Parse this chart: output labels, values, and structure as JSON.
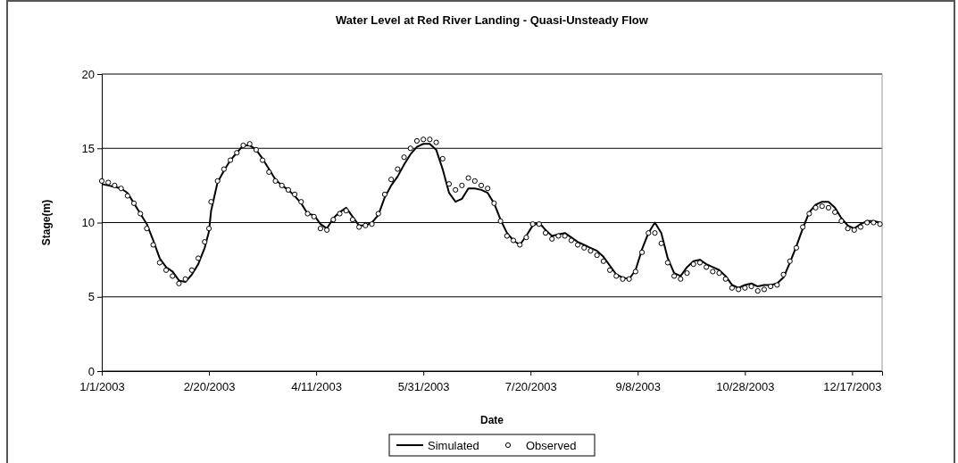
{
  "chart_data": {
    "type": "line",
    "title": "Water Level at Red River Landing - Quasi-Unsteady Flow",
    "xlabel": "Date",
    "ylabel": "Stage(m)",
    "x": [
      "2003-01-01",
      "2003-01-04",
      "2003-01-07",
      "2003-01-10",
      "2003-01-13",
      "2003-01-16",
      "2003-01-19",
      "2003-01-22",
      "2003-01-25",
      "2003-01-28",
      "2003-01-31",
      "2003-02-03",
      "2003-02-06",
      "2003-02-09",
      "2003-02-12",
      "2003-02-15",
      "2003-02-18",
      "2003-02-20",
      "2003-02-21",
      "2003-02-24",
      "2003-02-27",
      "2003-03-02",
      "2003-03-05",
      "2003-03-08",
      "2003-03-11",
      "2003-03-14",
      "2003-03-17",
      "2003-03-20",
      "2003-03-23",
      "2003-03-26",
      "2003-03-29",
      "2003-04-01",
      "2003-04-04",
      "2003-04-07",
      "2003-04-10",
      "2003-04-13",
      "2003-04-16",
      "2003-04-19",
      "2003-04-22",
      "2003-04-25",
      "2003-04-28",
      "2003-05-01",
      "2003-05-04",
      "2003-05-07",
      "2003-05-10",
      "2003-05-13",
      "2003-05-16",
      "2003-05-19",
      "2003-05-22",
      "2003-05-25",
      "2003-05-28",
      "2003-05-31",
      "2003-06-03",
      "2003-06-06",
      "2003-06-09",
      "2003-06-12",
      "2003-06-15",
      "2003-06-18",
      "2003-06-21",
      "2003-06-24",
      "2003-06-27",
      "2003-06-30",
      "2003-07-03",
      "2003-07-06",
      "2003-07-09",
      "2003-07-12",
      "2003-07-15",
      "2003-07-18",
      "2003-07-21",
      "2003-07-24",
      "2003-07-27",
      "2003-07-30",
      "2003-08-02",
      "2003-08-05",
      "2003-08-08",
      "2003-08-11",
      "2003-08-14",
      "2003-08-17",
      "2003-08-20",
      "2003-08-23",
      "2003-08-26",
      "2003-08-29",
      "2003-09-01",
      "2003-09-04",
      "2003-09-07",
      "2003-09-10",
      "2003-09-13",
      "2003-09-16",
      "2003-09-19",
      "2003-09-22",
      "2003-09-25",
      "2003-09-28",
      "2003-10-01",
      "2003-10-04",
      "2003-10-07",
      "2003-10-10",
      "2003-10-13",
      "2003-10-16",
      "2003-10-19",
      "2003-10-22",
      "2003-10-25",
      "2003-10-28",
      "2003-10-31",
      "2003-11-03",
      "2003-11-06",
      "2003-11-09",
      "2003-11-12",
      "2003-11-15",
      "2003-11-18",
      "2003-11-21",
      "2003-11-24",
      "2003-11-27",
      "2003-11-30",
      "2003-12-03",
      "2003-12-06",
      "2003-12-09",
      "2003-12-12",
      "2003-12-15",
      "2003-12-18",
      "2003-12-21",
      "2003-12-24",
      "2003-12-27",
      "2003-12-30"
    ],
    "series": [
      {
        "name": "Simulated",
        "color": "#000000",
        "values": [
          12.6,
          12.5,
          12.4,
          12.3,
          12.0,
          11.3,
          10.6,
          9.9,
          8.8,
          7.6,
          7.0,
          6.7,
          6.1,
          6.0,
          6.5,
          7.2,
          8.3,
          9.4,
          10.8,
          12.7,
          13.5,
          14.2,
          14.7,
          15.2,
          15.2,
          14.9,
          14.3,
          13.6,
          12.9,
          12.5,
          12.2,
          11.8,
          11.3,
          10.6,
          10.5,
          9.9,
          9.6,
          10.3,
          10.7,
          11.0,
          10.4,
          9.8,
          9.8,
          10.0,
          10.5,
          11.7,
          12.5,
          13.1,
          13.9,
          14.6,
          15.1,
          15.3,
          15.3,
          14.9,
          13.6,
          12.0,
          11.4,
          11.6,
          12.3,
          12.3,
          12.2,
          12.0,
          11.3,
          10.2,
          9.3,
          8.8,
          8.5,
          9.1,
          9.8,
          10.0,
          9.5,
          9.1,
          9.2,
          9.3,
          9.0,
          8.7,
          8.5,
          8.3,
          8.1,
          7.7,
          7.1,
          6.5,
          6.3,
          6.2,
          6.8,
          8.2,
          9.3,
          10.0,
          9.3,
          7.6,
          6.6,
          6.4,
          7.0,
          7.4,
          7.5,
          7.2,
          7.0,
          6.8,
          6.4,
          5.8,
          5.6,
          5.8,
          5.9,
          5.7,
          5.8,
          5.8,
          5.9,
          6.3,
          7.3,
          8.4,
          9.6,
          10.7,
          11.2,
          11.4,
          11.4,
          11.0,
          10.3,
          9.8,
          9.6,
          9.9,
          10.1,
          10.1,
          10.0
        ]
      },
      {
        "name": "Observed",
        "type": "scatter",
        "marker": "circle",
        "color": "#000000",
        "values": [
          12.8,
          12.7,
          12.5,
          12.3,
          11.8,
          11.3,
          10.6,
          9.6,
          8.5,
          7.3,
          6.8,
          6.4,
          5.9,
          6.2,
          6.8,
          7.6,
          8.7,
          9.6,
          11.4,
          12.8,
          13.6,
          14.2,
          14.7,
          15.2,
          15.3,
          14.9,
          14.2,
          13.4,
          12.8,
          12.5,
          12.2,
          11.9,
          11.4,
          10.6,
          10.4,
          9.6,
          9.5,
          10.2,
          10.6,
          10.8,
          10.2,
          9.7,
          9.8,
          9.9,
          10.6,
          11.9,
          12.9,
          13.6,
          14.4,
          15.0,
          15.5,
          15.6,
          15.6,
          15.4,
          14.3,
          12.6,
          12.2,
          12.5,
          13.0,
          12.8,
          12.5,
          12.3,
          11.3,
          10.1,
          9.1,
          8.8,
          8.5,
          9.0,
          9.9,
          9.9,
          9.3,
          8.9,
          9.1,
          9.1,
          8.8,
          8.5,
          8.3,
          8.1,
          7.8,
          7.4,
          6.8,
          6.4,
          6.2,
          6.2,
          6.7,
          8.0,
          9.3,
          9.3,
          8.6,
          7.3,
          6.4,
          6.2,
          6.6,
          7.2,
          7.3,
          7.0,
          6.7,
          6.6,
          6.2,
          5.6,
          5.5,
          5.6,
          5.7,
          5.4,
          5.5,
          5.7,
          5.8,
          6.5,
          7.4,
          8.3,
          9.7,
          10.6,
          11.0,
          11.1,
          11.0,
          10.7,
          10.1,
          9.6,
          9.5,
          9.7,
          10.0,
          10.0,
          9.9
        ]
      }
    ],
    "xlim": [
      "2003-01-01",
      "2003-12-31"
    ],
    "xticks": [
      {
        "value": "2003-01-01",
        "label": "1/1/2003"
      },
      {
        "value": "2003-02-20",
        "label": "2/20/2003"
      },
      {
        "value": "2003-04-11",
        "label": "4/11/2003"
      },
      {
        "value": "2003-05-31",
        "label": "5/31/2003"
      },
      {
        "value": "2003-07-20",
        "label": "7/20/2003"
      },
      {
        "value": "2003-09-08",
        "label": "9/8/2003"
      },
      {
        "value": "2003-10-28",
        "label": "10/28/2003"
      },
      {
        "value": "2003-12-17",
        "label": "12/17/2003"
      }
    ],
    "ylim": [
      0,
      20
    ],
    "yticks": [
      0,
      5,
      10,
      15,
      20
    ],
    "grid": "y",
    "legend": "bottom"
  }
}
